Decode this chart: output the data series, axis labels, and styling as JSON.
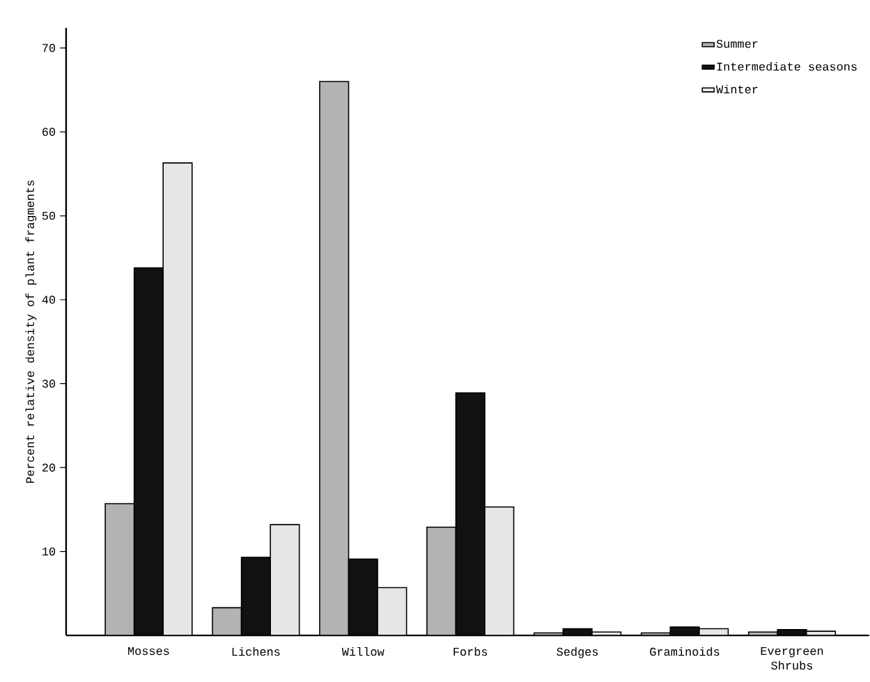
{
  "chart_data": {
    "type": "bar",
    "ylabel": "Percent relative density of plant fragments",
    "categories": [
      "Mosses",
      "Lichens",
      "Willow",
      "Forbs",
      "Sedges",
      "Graminoids",
      "Evergreen Shrubs"
    ],
    "series": [
      {
        "name": "Summer",
        "color": "#b3b3b3",
        "values": [
          15.7,
          3.3,
          66,
          12.9,
          0.3,
          0.3,
          0.4
        ]
      },
      {
        "name": "Intermediate seasons",
        "color": "#111111",
        "values": [
          43.8,
          9.3,
          9.1,
          28.9,
          0.8,
          1.0,
          0.7
        ]
      },
      {
        "name": "Winter",
        "color": "#e6e6e6",
        "values": [
          56.3,
          13.2,
          5.7,
          15.3,
          0.4,
          0.8,
          0.5
        ]
      }
    ],
    "ylim": [
      0,
      72.4
    ],
    "yticks": [
      10,
      20,
      30,
      40,
      50,
      60,
      70
    ],
    "legend": "top right"
  }
}
